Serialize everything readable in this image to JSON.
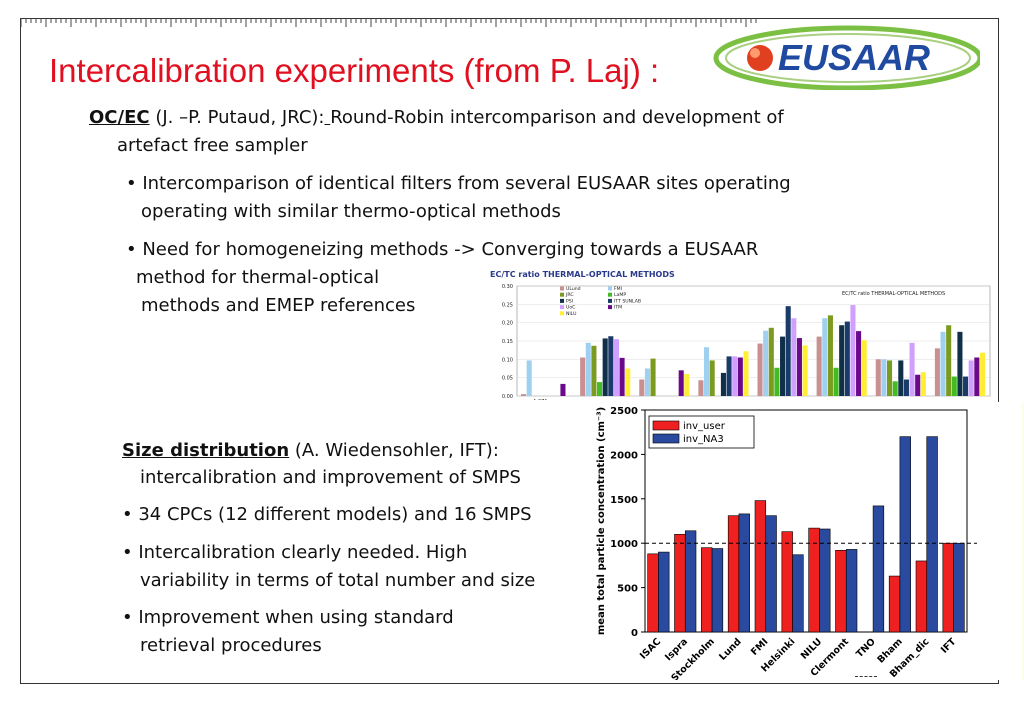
{
  "slide": {
    "title": "Intercalibration experiments (from P. Laj) :",
    "logo_text": "EUSAAR"
  },
  "ocec": {
    "heading": "OC/EC",
    "line1_a": " (J. –P. Putaud, JRC):",
    "line1_b": " ",
    "line1_c": "Round-Robin intercomparison and development of",
    "line2": "artefact free sampler",
    "bullet1_l1": "• Intercomparison of identical filters from several EUSAAR sites operating",
    "bullet1_l2": "operating with similar thermo-optical methods",
    "bullet2_l1": "• Need for homogeneizing methods  -> Converging towards a EUSAAR",
    "bullet2_l2": " method for thermal-optical",
    "bullet2_l3": "methods and EMEP references"
  },
  "size": {
    "heading": "Size distribution",
    "line1": " (A. Wiedensohler, IFT):",
    "line2": "intercalibration and improvement of SMPS",
    "bullet1": "• 34 CPCs (12 different models) and 16 SMPS",
    "bullet2_l1": "• Intercalibration clearly needed. High",
    "bullet2_l2": "variability in terms of total number and size",
    "bullet3_l1": "• Improvement when using standard",
    "bullet3_l2": "retrieval procedures"
  },
  "chart_data": [
    {
      "type": "bar",
      "title": "EC/TC ratio THERMAL-OPTICAL METHODS",
      "inner_title": "EC/TC ratio THERMAL-OPTICAL METHODS",
      "y_ticks": [
        "0.00",
        "0.05",
        "0.10",
        "0.15",
        "0.20",
        "0.25",
        "0.30"
      ],
      "ylim": [
        0,
        0.3
      ],
      "first_category_label": "A 271",
      "legend": [
        "ULund",
        "FMI",
        "JRC",
        "LaMP",
        "PSI",
        "ITT SUNLAB",
        "UoC",
        "ITM",
        "NILU"
      ],
      "colors": [
        "#c89090",
        "#9fd0f0",
        "#7a9a20",
        "#44bb22",
        "#10304a",
        "#1a3a6a",
        "#d0a0ff",
        "#6a0a8a",
        "#ffee33"
      ],
      "groups": [
        [
          0.005,
          0.097,
          0,
          0,
          0,
          0,
          0,
          0.033,
          0
        ],
        [
          0.105,
          0.145,
          0.137,
          0.038,
          0.157,
          0.163,
          0.155,
          0.104,
          0.075
        ],
        [
          0.045,
          0.075,
          0.102,
          0,
          0,
          0,
          0,
          0.07,
          0.06
        ],
        [
          0.043,
          0.133,
          0.097,
          0,
          0.063,
          0.108,
          0.108,
          0.105,
          0.122
        ],
        [
          0.143,
          0.178,
          0.186,
          0.077,
          0.162,
          0.245,
          0.212,
          0.158,
          0.138
        ],
        [
          0.162,
          0.212,
          0.22,
          0.077,
          0.193,
          0.203,
          0.248,
          0.177,
          0.152
        ],
        [
          0.1,
          0.1,
          0.097,
          0.04,
          0.097,
          0.045,
          0.145,
          0.058,
          0.065
        ],
        [
          0.13,
          0.175,
          0.193,
          0.053,
          0.175,
          0.053,
          0.097,
          0.105,
          0.118
        ]
      ]
    },
    {
      "type": "bar",
      "ylabel": "mean total particle concentration (cm⁻³)",
      "ylim": [
        0,
        2500
      ],
      "y_ticks": [
        0,
        500,
        1000,
        1500,
        2000,
        2500
      ],
      "reference_line": 1000,
      "categories": [
        "ISAC",
        "Ispra",
        "Stockholm",
        "Lund",
        "FMI",
        "Helsinki",
        "NILU",
        "Clermont",
        "TNO",
        "Bham",
        "Bham_dic",
        "IFT"
      ],
      "series": [
        {
          "name": "inv_user",
          "color": "#ee2020",
          "values": [
            880,
            1100,
            950,
            1310,
            1480,
            1130,
            1170,
            920,
            0,
            630,
            800,
            1000
          ]
        },
        {
          "name": "inv_NA3",
          "color": "#2a4aa0",
          "values": [
            900,
            1140,
            940,
            1330,
            1310,
            870,
            1160,
            930,
            1420,
            2200,
            2200,
            1000
          ]
        }
      ]
    }
  ]
}
